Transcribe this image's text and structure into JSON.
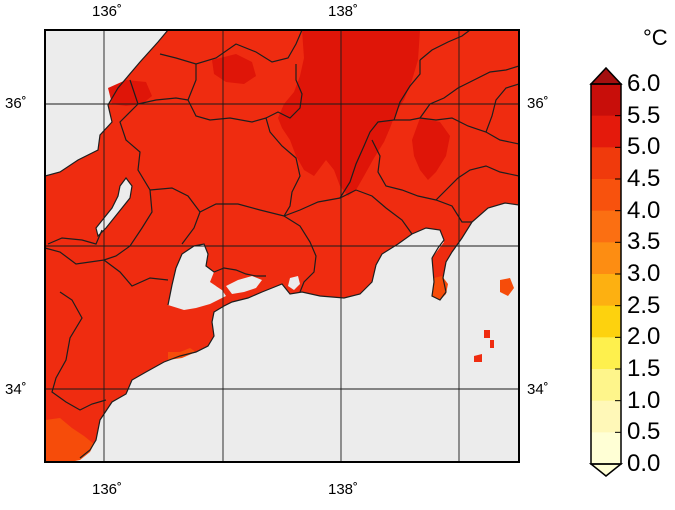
{
  "map": {
    "lon_ticks": [
      {
        "key": "lon136",
        "label": "136˚",
        "value": 136
      },
      {
        "key": "lon138",
        "label": "138˚",
        "value": 138
      }
    ],
    "lat_ticks": [
      {
        "key": "lat36",
        "label": "36˚",
        "value": 36
      },
      {
        "key": "lat34",
        "label": "34˚",
        "value": 34
      }
    ],
    "colors": {
      "sea": "#ececec",
      "land_base": "#ef2c10",
      "land_high": "#df1508",
      "land_low": "#f64c0a",
      "border": "#1e1e1e"
    }
  },
  "colorbar": {
    "unit": "°C",
    "labels": [
      "6.0",
      "5.5",
      "5.0",
      "4.5",
      "4.0",
      "3.5",
      "3.0",
      "2.5",
      "2.0",
      "1.5",
      "1.0",
      "0.5",
      "0.0"
    ],
    "colors": [
      "#a50f0f",
      "#c80e0a",
      "#e41a0c",
      "#f03a0c",
      "#f8520d",
      "#fb6f12",
      "#fd8d12",
      "#fdb011",
      "#fdd20e",
      "#fef04d",
      "#fef58b",
      "#fff8b8",
      "#ffffd5"
    ]
  }
}
